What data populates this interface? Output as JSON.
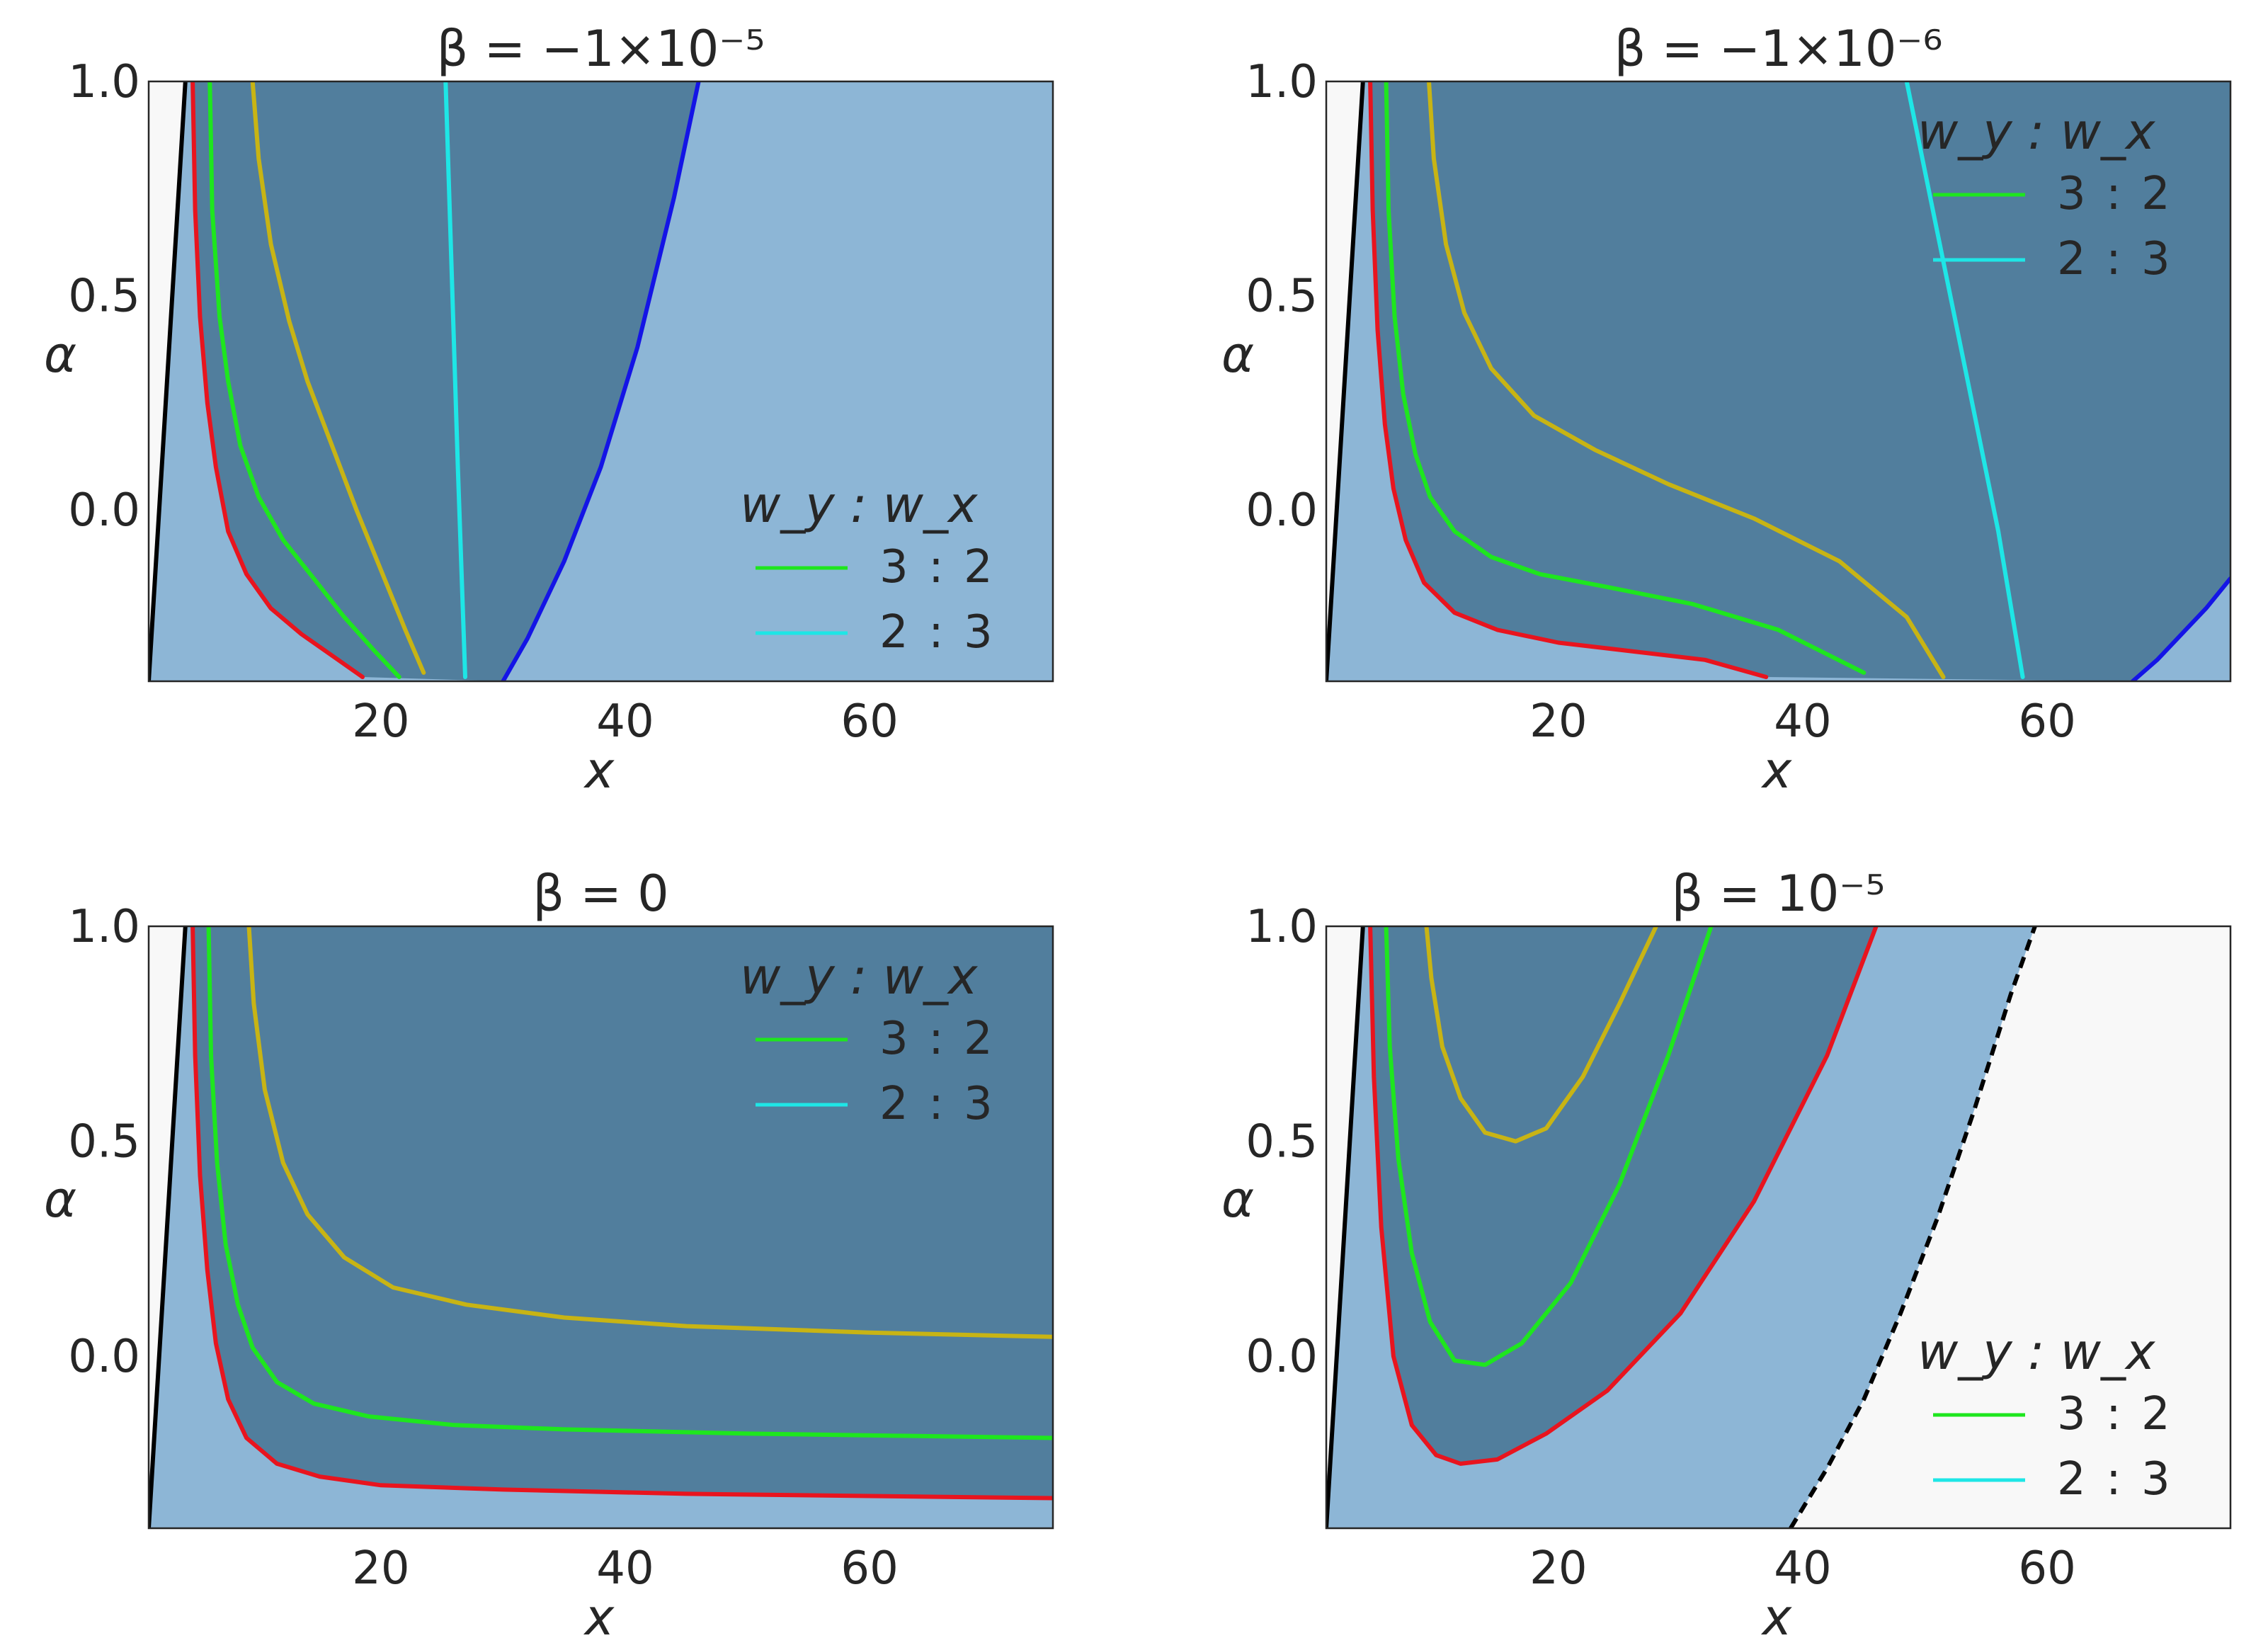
{
  "colors": {
    "light_region": "#8db6d6",
    "dark_region": "#517e9d",
    "forbidden_region": "#f8f8f8",
    "axes_edge": "#262626",
    "red_curve": "#e8141e",
    "green_curve": "#1ee61e",
    "yellow_curve": "#c8b414",
    "cyan_curve": "#1ee6e6",
    "blue_curve": "#1414e6",
    "black_line": "#000000"
  },
  "chart_data": [
    {
      "type": "line",
      "title": "β = −1×10⁻⁵",
      "xlabel": "x",
      "ylabel": "α",
      "xlim": [
        1,
        75
      ],
      "ylim": [
        -0.4,
        1.0
      ],
      "xticks": [
        "20",
        "40",
        "60"
      ],
      "yticks": [
        "0.0",
        "0.5",
        "1.0"
      ],
      "grid": false,
      "legend": {
        "placement": "lower-right",
        "title": "w_y : w_x",
        "entries": [
          {
            "label": "3 : 2",
            "color": "#1ee61e"
          },
          {
            "label": "2 : 3",
            "color": "#1ee6e6"
          }
        ]
      },
      "series": [
        {
          "color": "#000000",
          "x": [
            1.0,
            4.0
          ],
          "y": [
            -0.4,
            1.0
          ]
        },
        {
          "color": "#e8141e",
          "x": [
            4.6,
            4.8,
            5.2,
            5.8,
            6.5,
            7.5,
            9.0,
            11.0,
            13.5,
            16.0,
            18.5
          ],
          "y": [
            1.0,
            0.7,
            0.45,
            0.25,
            0.1,
            -0.05,
            -0.15,
            -0.23,
            -0.29,
            -0.34,
            -0.39
          ]
        },
        {
          "color": "#1ee61e",
          "x": [
            6.0,
            6.2,
            6.8,
            7.5,
            8.5,
            10.0,
            12.0,
            14.5,
            17.0,
            19.5,
            21.5
          ],
          "y": [
            1.0,
            0.7,
            0.45,
            0.3,
            0.15,
            0.03,
            -0.07,
            -0.16,
            -0.25,
            -0.33,
            -0.39
          ]
        },
        {
          "color": "#c8b414",
          "x": [
            9.5,
            10.0,
            11.0,
            12.5,
            14.0,
            16.0,
            18.0,
            20.0,
            22.0,
            23.5
          ],
          "y": [
            1.0,
            0.82,
            0.62,
            0.44,
            0.3,
            0.15,
            0.0,
            -0.14,
            -0.28,
            -0.38
          ]
        },
        {
          "color": "#1ee6e6",
          "x": [
            25.3,
            25.8,
            26.3,
            26.9
          ],
          "y": [
            1.0,
            0.55,
            0.1,
            -0.39
          ]
        },
        {
          "color": "#1414e6",
          "x": [
            30.0,
            32.0,
            35.0,
            38.0,
            41.0,
            44.0,
            46.0
          ],
          "y": [
            -0.4,
            -0.3,
            -0.12,
            0.1,
            0.38,
            0.73,
            1.0
          ]
        }
      ]
    },
    {
      "type": "line",
      "title": "β = −1×10⁻⁶",
      "xlabel": "x",
      "ylabel": "α",
      "xlim": [
        1,
        75
      ],
      "ylim": [
        -0.4,
        1.0
      ],
      "xticks": [
        "20",
        "40",
        "60"
      ],
      "yticks": [
        "0.0",
        "0.5",
        "1.0"
      ],
      "grid": false,
      "legend": {
        "placement": "upper-right",
        "title": "w_y : w_x",
        "entries": [
          {
            "label": "3 : 2",
            "color": "#1ee61e"
          },
          {
            "label": "2 : 3",
            "color": "#1ee6e6"
          }
        ]
      },
      "series": [
        {
          "color": "#000000",
          "x": [
            1.0,
            4.0
          ],
          "y": [
            -0.4,
            1.0
          ]
        },
        {
          "color": "#e8141e",
          "x": [
            4.6,
            4.8,
            5.2,
            5.8,
            6.5,
            7.5,
            9.0,
            11.5,
            15.0,
            20.0,
            26.0,
            32.0,
            37.0
          ],
          "y": [
            1.0,
            0.7,
            0.42,
            0.2,
            0.05,
            -0.07,
            -0.17,
            -0.24,
            -0.28,
            -0.31,
            -0.33,
            -0.35,
            -0.39
          ]
        },
        {
          "color": "#1ee61e",
          "x": [
            5.9,
            6.1,
            6.6,
            7.3,
            8.3,
            9.5,
            11.5,
            14.5,
            18.5,
            24.0,
            31.0,
            38.0,
            45.0
          ],
          "y": [
            1.0,
            0.7,
            0.45,
            0.27,
            0.13,
            0.03,
            -0.05,
            -0.11,
            -0.15,
            -0.18,
            -0.22,
            -0.28,
            -0.38
          ]
        },
        {
          "color": "#c8b414",
          "x": [
            9.4,
            9.8,
            10.8,
            12.3,
            14.5,
            18.0,
            23.0,
            29.0,
            36.0,
            43.0,
            48.5,
            51.5
          ],
          "y": [
            1.0,
            0.82,
            0.62,
            0.46,
            0.33,
            0.22,
            0.14,
            0.06,
            -0.02,
            -0.12,
            -0.25,
            -0.39
          ]
        },
        {
          "color": "#1ee6e6",
          "x": [
            48.5,
            51.0,
            53.5,
            56.0,
            58.0
          ],
          "y": [
            1.0,
            0.65,
            0.3,
            -0.05,
            -0.39
          ]
        },
        {
          "color": "#1414e6",
          "x": [
            67.0,
            69.0,
            71.0,
            73.0,
            75.0
          ],
          "y": [
            -0.4,
            -0.35,
            -0.29,
            -0.23,
            -0.16
          ]
        }
      ]
    },
    {
      "type": "line",
      "title": "β = 0",
      "xlabel": "x",
      "ylabel": "α",
      "xlim": [
        1,
        75
      ],
      "ylim": [
        -0.4,
        1.0
      ],
      "xticks": [
        "20",
        "40",
        "60"
      ],
      "yticks": [
        "0.0",
        "0.5",
        "1.0"
      ],
      "grid": false,
      "legend": {
        "placement": "upper-right",
        "title": "w_y : w_x",
        "entries": [
          {
            "label": "3 : 2",
            "color": "#1ee61e"
          },
          {
            "label": "2 : 3",
            "color": "#1ee6e6"
          }
        ]
      },
      "series": [
        {
          "color": "#000000",
          "x": [
            1.0,
            4.0
          ],
          "y": [
            -0.4,
            1.0
          ]
        },
        {
          "color": "#e8141e",
          "x": [
            4.6,
            4.8,
            5.2,
            5.8,
            6.5,
            7.5,
            9.0,
            11.5,
            15.0,
            20.0,
            30.0,
            45.0,
            60.0,
            75.0
          ],
          "y": [
            1.0,
            0.7,
            0.42,
            0.2,
            0.03,
            -0.1,
            -0.19,
            -0.25,
            -0.28,
            -0.3,
            -0.31,
            -0.32,
            -0.325,
            -0.33
          ]
        },
        {
          "color": "#1ee61e",
          "x": [
            5.9,
            6.1,
            6.6,
            7.3,
            8.3,
            9.5,
            11.5,
            14.5,
            19.0,
            26.0,
            35.0,
            50.0,
            75.0
          ],
          "y": [
            1.0,
            0.7,
            0.45,
            0.26,
            0.12,
            0.02,
            -0.06,
            -0.11,
            -0.14,
            -0.16,
            -0.17,
            -0.18,
            -0.19
          ]
        },
        {
          "color": "#c8b414",
          "x": [
            9.2,
            9.6,
            10.5,
            12.0,
            14.0,
            17.0,
            21.0,
            27.0,
            35.0,
            45.0,
            60.0,
            75.0
          ],
          "y": [
            1.0,
            0.82,
            0.62,
            0.45,
            0.33,
            0.23,
            0.16,
            0.12,
            0.09,
            0.07,
            0.055,
            0.045
          ]
        }
      ]
    },
    {
      "type": "line",
      "title": "β = 10⁻⁵",
      "xlabel": "x",
      "ylabel": "α",
      "xlim": [
        1,
        75
      ],
      "ylim": [
        -0.4,
        1.0
      ],
      "xticks": [
        "20",
        "40",
        "60"
      ],
      "yticks": [
        "0.0",
        "0.5",
        "1.0"
      ],
      "grid": false,
      "legend": {
        "placement": "lower-right",
        "title": "w_y : w_x",
        "entries": [
          {
            "label": "3 : 2",
            "color": "#1ee61e"
          },
          {
            "label": "2 : 3",
            "color": "#1ee6e6"
          }
        ]
      },
      "series": [
        {
          "color": "#000000",
          "x": [
            1.0,
            4.0
          ],
          "y": [
            -0.4,
            1.0
          ]
        },
        {
          "color": "#e8141e",
          "x": [
            4.6,
            4.9,
            5.5,
            6.5,
            8.0,
            10.0,
            12.0,
            15.0,
            19.0,
            24.0,
            30.0,
            36.0,
            42.0,
            46.0
          ],
          "y": [
            1.0,
            0.65,
            0.3,
            0.0,
            -0.16,
            -0.23,
            -0.25,
            -0.24,
            -0.18,
            -0.08,
            0.1,
            0.36,
            0.7,
            1.0
          ]
        },
        {
          "color": "#1ee61e",
          "x": [
            5.9,
            6.2,
            6.9,
            8.0,
            9.5,
            11.5,
            14.0,
            17.0,
            21.0,
            25.0,
            29.0,
            32.5
          ],
          "y": [
            1.0,
            0.72,
            0.46,
            0.24,
            0.08,
            -0.01,
            -0.02,
            0.03,
            0.17,
            0.4,
            0.7,
            1.0
          ]
        },
        {
          "color": "#c8b414",
          "x": [
            9.2,
            9.6,
            10.5,
            12.0,
            14.0,
            16.5,
            19.0,
            22.0,
            25.0,
            28.0
          ],
          "y": [
            1.0,
            0.88,
            0.72,
            0.6,
            0.52,
            0.5,
            0.53,
            0.65,
            0.82,
            1.0
          ]
        },
        {
          "color": "#000000",
          "dashed": true,
          "x": [
            39.0,
            42.0,
            45.0,
            48.0,
            51.0,
            54.0,
            57.0,
            59.0
          ],
          "y": [
            -0.4,
            -0.26,
            -0.1,
            0.1,
            0.32,
            0.57,
            0.84,
            1.0
          ]
        }
      ]
    }
  ]
}
